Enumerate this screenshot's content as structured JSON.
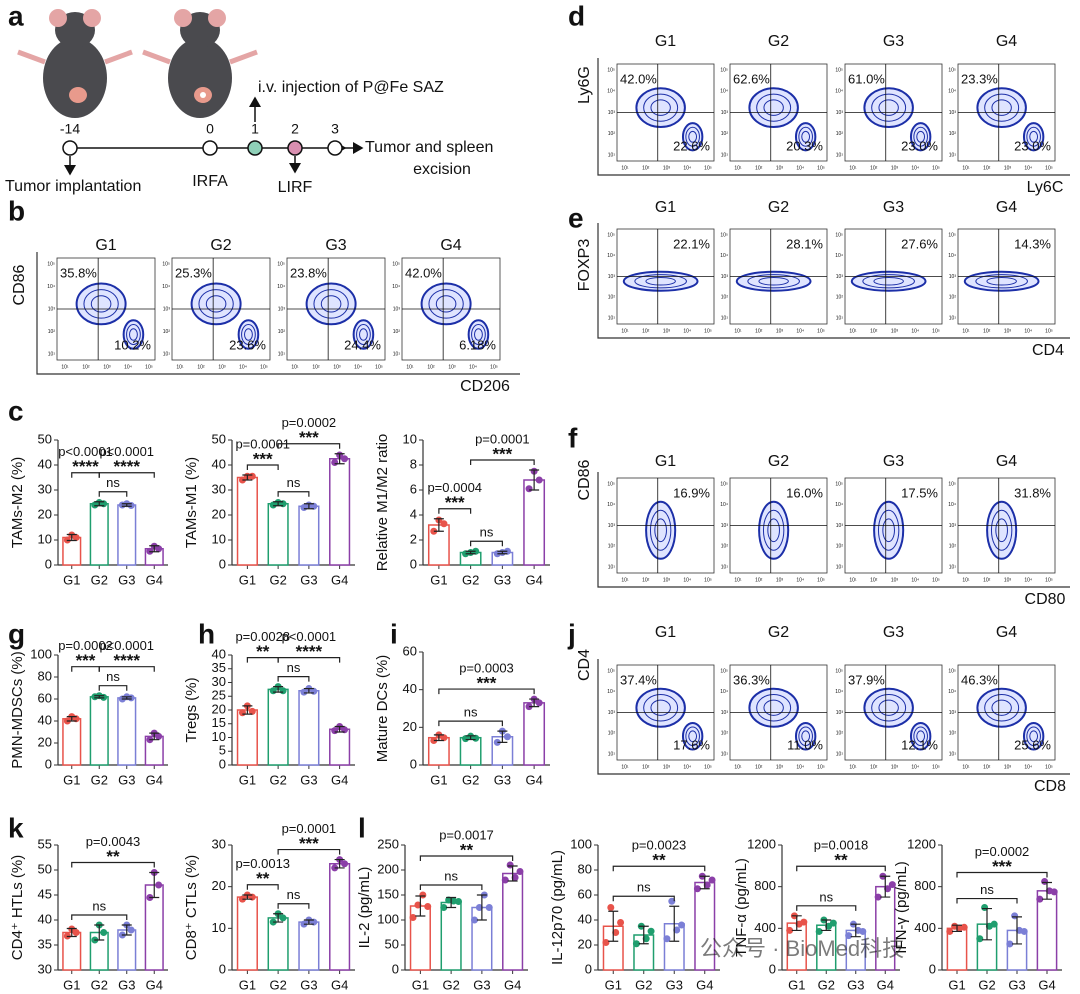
{
  "letters": [
    "a",
    "b",
    "c",
    "d",
    "e",
    "f",
    "g",
    "h",
    "i",
    "j",
    "k",
    "l"
  ],
  "schematic": {
    "days": [
      "-14",
      "0",
      "1",
      "2",
      "3"
    ],
    "injection": "i.v. injection of P@Fe SAZ",
    "end": [
      "Tumor and spleen",
      "excision"
    ],
    "implant": "Tumor implantation",
    "irfa": "IRFA",
    "lirf": "LIRF"
  },
  "flow_ticks": [
    "10¹",
    "10²",
    "10³",
    "10⁴",
    "10⁵"
  ],
  "flow": [
    {
      "y_label": "CD86",
      "x_label": "CD206",
      "groups": [
        "G1",
        "G2",
        "G3",
        "G4"
      ],
      "plots": [
        {
          "tl": "35.8%",
          "br": "10.2%"
        },
        {
          "tl": "25.3%",
          "br": "23.6%"
        },
        {
          "tl": "23.8%",
          "br": "24.4%"
        },
        {
          "tl": "42.0%",
          "br": "6.18%"
        }
      ]
    },
    {
      "y_label": "Ly6G",
      "x_label": "Ly6C",
      "groups": [
        "G1",
        "G2",
        "G3",
        "G4"
      ],
      "plots": [
        {
          "tl": "42.0%",
          "br": "22.6%"
        },
        {
          "tl": "62.6%",
          "br": "20.3%"
        },
        {
          "tl": "61.0%",
          "br": "23.0%"
        },
        {
          "tl": "23.3%",
          "br": "23.0%"
        }
      ]
    },
    {
      "y_label": "FOXP3",
      "x_label": "CD4",
      "groups": [
        "G1",
        "G2",
        "G3",
        "G4"
      ],
      "plots": [
        {
          "tr": "22.1%"
        },
        {
          "tr": "28.1%"
        },
        {
          "tr": "27.6%"
        },
        {
          "tr": "14.3%"
        }
      ]
    },
    {
      "y_label": "CD86",
      "x_label": "CD80",
      "groups": [
        "G1",
        "G2",
        "G3",
        "G4"
      ],
      "plots": [
        {
          "tr": "16.9%"
        },
        {
          "tr": "16.0%"
        },
        {
          "tr": "17.5%"
        },
        {
          "tr": "31.8%"
        }
      ]
    },
    {
      "y_label": "CD4",
      "x_label": "CD8",
      "groups": [
        "G1",
        "G2",
        "G3",
        "G4"
      ],
      "plots": [
        {
          "tl": "37.4%",
          "br": "17.6%"
        },
        {
          "tl": "36.3%",
          "br": "11.0%"
        },
        {
          "tl": "37.9%",
          "br": "12.1%"
        },
        {
          "tl": "46.3%",
          "br": "25.6%"
        }
      ]
    }
  ],
  "chart_data": [
    {
      "type": "bar",
      "y_label": "TAMs-M2 (%)",
      "categories": [
        "G1",
        "G2",
        "G3",
        "G4"
      ],
      "colors": [
        "#e8534a",
        "#1f9e6e",
        "#7b7fd6",
        "#8b3fa8"
      ],
      "values": [
        11,
        24.5,
        24,
        6.5
      ],
      "errors": [
        1.2,
        0.8,
        0.5,
        1.2
      ],
      "points": [
        [
          10,
          12,
          11
        ],
        [
          24,
          25,
          24.5
        ],
        [
          24,
          24.5,
          23.8
        ],
        [
          5.5,
          7.5,
          6.5
        ]
      ],
      "ylim": [
        0,
        50
      ],
      "yticks": [
        0,
        10,
        20,
        30,
        40,
        50
      ],
      "comparisons": [
        {
          "groups": [
            "G2",
            "G3"
          ],
          "text": "ns"
        },
        {
          "groups": [
            "G1",
            "G2"
          ],
          "p": "p<0.0001",
          "stars": "****"
        },
        {
          "groups": [
            "G2",
            "G4"
          ],
          "p": "p<0.0001",
          "stars": "****"
        }
      ]
    },
    {
      "type": "bar",
      "y_label": "TAMs-M1 (%)",
      "categories": [
        "G1",
        "G2",
        "G3",
        "G4"
      ],
      "colors": [
        "#e8534a",
        "#1f9e6e",
        "#7b7fd6",
        "#8b3fa8"
      ],
      "values": [
        35,
        24.5,
        23.5,
        42.5
      ],
      "errors": [
        1,
        0.8,
        1,
        2
      ],
      "points": [
        [
          34,
          35.5,
          35.5
        ],
        [
          24,
          25,
          24.5
        ],
        [
          23,
          24,
          23.5
        ],
        [
          41,
          44,
          42.5
        ]
      ],
      "ylim": [
        0,
        50
      ],
      "yticks": [
        0,
        10,
        20,
        30,
        40,
        50
      ],
      "comparisons": [
        {
          "groups": [
            "G2",
            "G3"
          ],
          "text": "ns"
        },
        {
          "groups": [
            "G1",
            "G2"
          ],
          "p": "p=0.0001",
          "stars": "***"
        },
        {
          "groups": [
            "G2",
            "G4"
          ],
          "p": "p=0.0002",
          "stars": "***"
        }
      ]
    },
    {
      "type": "bar",
      "y_label": "Relative M1/M2 ratio",
      "categories": [
        "G1",
        "G2",
        "G3",
        "G4"
      ],
      "colors": [
        "#e8534a",
        "#1f9e6e",
        "#7b7fd6",
        "#8b3fa8"
      ],
      "values": [
        3.2,
        1.0,
        1.0,
        6.8
      ],
      "errors": [
        0.5,
        0.1,
        0.1,
        0.8
      ],
      "points": [
        [
          2.7,
          3.6,
          3.3
        ],
        [
          0.9,
          1.0,
          1.1
        ],
        [
          0.9,
          1.0,
          1.1
        ],
        [
          6.1,
          7.5,
          6.8
        ]
      ],
      "ylim": [
        0,
        10
      ],
      "yticks": [
        0,
        2,
        4,
        6,
        8,
        10
      ],
      "comparisons": [
        {
          "groups": [
            "G2",
            "G3"
          ],
          "text": "ns"
        },
        {
          "groups": [
            "G1",
            "G2"
          ],
          "p": "p=0.0004",
          "stars": "***"
        },
        {
          "groups": [
            "G2",
            "G4"
          ],
          "p": "p=0.0001",
          "stars": "***"
        }
      ]
    },
    {
      "type": "bar",
      "y_label": "PMN-MDSCs (%)",
      "categories": [
        "G1",
        "G2",
        "G3",
        "G4"
      ],
      "colors": [
        "#e8534a",
        "#1f9e6e",
        "#7b7fd6",
        "#8b3fa8"
      ],
      "values": [
        42,
        62,
        61,
        26
      ],
      "errors": [
        2,
        1,
        1,
        3
      ],
      "points": [
        [
          40,
          44,
          42
        ],
        [
          62,
          63,
          61.5
        ],
        [
          60,
          62,
          61
        ],
        [
          23,
          29,
          26
        ]
      ],
      "ylim": [
        0,
        100
      ],
      "yticks": [
        0,
        20,
        40,
        60,
        80,
        100
      ],
      "comparisons": [
        {
          "groups": [
            "G2",
            "G3"
          ],
          "text": "ns"
        },
        {
          "groups": [
            "G1",
            "G2"
          ],
          "p": "p=0.0002",
          "stars": "***"
        },
        {
          "groups": [
            "G2",
            "G4"
          ],
          "p": "p<0.0001",
          "stars": "****"
        }
      ]
    },
    {
      "type": "bar",
      "y_label": "Tregs (%)",
      "categories": [
        "G1",
        "G2",
        "G3",
        "G4"
      ],
      "colors": [
        "#e8534a",
        "#1f9e6e",
        "#7b7fd6",
        "#8b3fa8"
      ],
      "values": [
        20,
        27.5,
        27,
        13
      ],
      "errors": [
        1.5,
        1,
        0.8,
        1
      ],
      "points": [
        [
          19,
          21.5,
          19.5
        ],
        [
          27,
          28.5,
          27
        ],
        [
          26.5,
          27.8,
          26.8
        ],
        [
          12.5,
          14,
          12.8
        ]
      ],
      "ylim": [
        0,
        40
      ],
      "yticks": [
        0,
        5,
        10,
        15,
        20,
        25,
        30,
        35,
        40
      ],
      "comparisons": [
        {
          "groups": [
            "G2",
            "G3"
          ],
          "text": "ns"
        },
        {
          "groups": [
            "G1",
            "G2"
          ],
          "p": "p=0.0028",
          "stars": "**"
        },
        {
          "groups": [
            "G2",
            "G4"
          ],
          "p": "p<0.0001",
          "stars": "****"
        }
      ]
    },
    {
      "type": "bar",
      "y_label": "Mature DCs (%)",
      "categories": [
        "G1",
        "G2",
        "G3",
        "G4"
      ],
      "colors": [
        "#e8534a",
        "#1f9e6e",
        "#7b7fd6",
        "#8b3fa8"
      ],
      "values": [
        14.5,
        14.5,
        15,
        33
      ],
      "errors": [
        1.5,
        1,
        3,
        2
      ],
      "points": [
        [
          13,
          16,
          14.5
        ],
        [
          14,
          15.3,
          14.2
        ],
        [
          12,
          18,
          15
        ],
        [
          31,
          35,
          33
        ]
      ],
      "ylim": [
        0,
        60
      ],
      "yticks": [
        0,
        20,
        40,
        60
      ],
      "comparisons": [
        {
          "groups": [
            "G1",
            "G3"
          ],
          "text": "ns"
        },
        {
          "groups": [
            "G1",
            "G4"
          ],
          "p": "p=0.0003",
          "stars": "***"
        }
      ]
    },
    {
      "type": "bar",
      "y_label": "CD4⁺ HTLs (%)",
      "categories": [
        "G1",
        "G2",
        "G3",
        "G4"
      ],
      "colors": [
        "#e8534a",
        "#1f9e6e",
        "#7b7fd6",
        "#8b3fa8"
      ],
      "values": [
        37.5,
        37.5,
        38,
        47
      ],
      "errors": [
        0.8,
        1.5,
        1,
        2.5
      ],
      "points": [
        [
          36.8,
          38.2,
          37.5
        ],
        [
          36,
          39,
          37.5
        ],
        [
          37,
          39,
          38
        ],
        [
          44.5,
          49.5,
          47
        ]
      ],
      "ylim": [
        30,
        55
      ],
      "yticks": [
        30,
        35,
        40,
        45,
        50,
        55
      ],
      "comparisons": [
        {
          "groups": [
            "G1",
            "G3"
          ],
          "text": "ns"
        },
        {
          "groups": [
            "G1",
            "G4"
          ],
          "p": "p=0.0043",
          "stars": "**"
        }
      ]
    },
    {
      "type": "bar",
      "y_label": "CD8⁺ CTLs (%)",
      "categories": [
        "G1",
        "G2",
        "G3",
        "G4"
      ],
      "colors": [
        "#e8534a",
        "#1f9e6e",
        "#7b7fd6",
        "#8b3fa8"
      ],
      "values": [
        17.5,
        12.5,
        11.5,
        25.5
      ],
      "errors": [
        0.5,
        1,
        0.5,
        1
      ],
      "points": [
        [
          17,
          18,
          17.5
        ],
        [
          11.5,
          13.5,
          12.5
        ],
        [
          11,
          12,
          11.5
        ],
        [
          24.5,
          26.5,
          25.5
        ]
      ],
      "ylim": [
        0,
        30
      ],
      "yticks": [
        0,
        10,
        20,
        30
      ],
      "comparisons": [
        {
          "groups": [
            "G2",
            "G3"
          ],
          "text": "ns"
        },
        {
          "groups": [
            "G1",
            "G2"
          ],
          "p": "p=0.0013",
          "stars": "**"
        },
        {
          "groups": [
            "G2",
            "G4"
          ],
          "p": "p=0.0001",
          "stars": "***"
        }
      ]
    },
    {
      "type": "bar",
      "y_label": "IL-2 (pg/mL)",
      "categories": [
        "G1",
        "G2",
        "G3",
        "G4"
      ],
      "colors": [
        "#e8534a",
        "#1f9e6e",
        "#7b7fd6",
        "#8b3fa8"
      ],
      "values": [
        128,
        135,
        125,
        193
      ],
      "errors": [
        20,
        10,
        25,
        15
      ],
      "points": [
        [
          105,
          130,
          150,
          127
        ],
        [
          125,
          140,
          138,
          137
        ],
        [
          100,
          125,
          150,
          125
        ],
        [
          180,
          210,
          185,
          197
        ]
      ],
      "ylim": [
        0,
        250
      ],
      "yticks": [
        0,
        50,
        100,
        150,
        200,
        250
      ],
      "comparisons": [
        {
          "groups": [
            "G1",
            "G3"
          ],
          "text": "ns"
        },
        {
          "groups": [
            "G1",
            "G4"
          ],
          "p": "p=0.0017",
          "stars": "**"
        }
      ]
    },
    {
      "type": "bar",
      "y_label": "IL-12p70 (pg/mL)",
      "categories": [
        "G1",
        "G2",
        "G3",
        "G4"
      ],
      "colors": [
        "#e8534a",
        "#1f9e6e",
        "#7b7fd6",
        "#8b3fa8"
      ],
      "values": [
        35,
        28,
        37,
        70
      ],
      "errors": [
        12,
        7,
        14,
        5
      ],
      "points": [
        [
          22,
          50,
          30,
          38
        ],
        [
          21,
          35,
          25,
          31
        ],
        [
          25,
          55,
          32,
          36
        ],
        [
          65,
          75,
          68,
          72
        ]
      ],
      "ylim": [
        0,
        100
      ],
      "yticks": [
        0,
        20,
        40,
        60,
        80,
        100
      ],
      "comparisons": [
        {
          "groups": [
            "G1",
            "G3"
          ],
          "text": "ns"
        },
        {
          "groups": [
            "G1",
            "G4"
          ],
          "p": "p=0.0023",
          "stars": "**"
        }
      ]
    },
    {
      "type": "bar",
      "y_label": "TNF-α (pg/mL)",
      "categories": [
        "G1",
        "G2",
        "G3",
        "G4"
      ],
      "colors": [
        "#e8534a",
        "#1f9e6e",
        "#7b7fd6",
        "#8b3fa8"
      ],
      "values": [
        450,
        430,
        380,
        800
      ],
      "errors": [
        70,
        50,
        60,
        100
      ],
      "points": [
        [
          380,
          520,
          440,
          460
        ],
        [
          370,
          480,
          420,
          450
        ],
        [
          330,
          440,
          380,
          370
        ],
        [
          700,
          900,
          780,
          820
        ]
      ],
      "ylim": [
        0,
        1200
      ],
      "yticks": [
        0,
        400,
        800,
        1200
      ],
      "comparisons": [
        {
          "groups": [
            "G1",
            "G3"
          ],
          "text": "ns"
        },
        {
          "groups": [
            "G1",
            "G4"
          ],
          "p": "p=0.0018",
          "stars": "**"
        }
      ]
    },
    {
      "type": "bar",
      "y_label": "IFN-γ (pg/mL)",
      "categories": [
        "G1",
        "G2",
        "G3",
        "G4"
      ],
      "colors": [
        "#e8534a",
        "#1f9e6e",
        "#7b7fd6",
        "#8b3fa8"
      ],
      "values": [
        400,
        440,
        380,
        760
      ],
      "errors": [
        30,
        150,
        130,
        80
      ],
      "points": [
        [
          370,
          420,
          400,
          410
        ],
        [
          300,
          600,
          420,
          440
        ],
        [
          250,
          520,
          380,
          370
        ],
        [
          680,
          850,
          760,
          750
        ]
      ],
      "ylim": [
        0,
        1200
      ],
      "yticks": [
        0,
        400,
        800,
        1200
      ],
      "comparisons": [
        {
          "groups": [
            "G1",
            "G3"
          ],
          "text": "ns"
        },
        {
          "groups": [
            "G1",
            "G4"
          ],
          "p": "p=0.0002",
          "stars": "***"
        }
      ]
    }
  ],
  "watermark": "公众号 · BioMed科技"
}
